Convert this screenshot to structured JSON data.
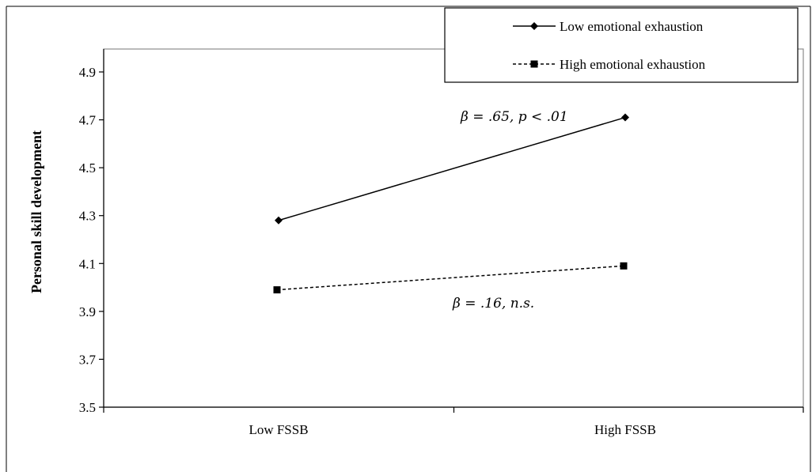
{
  "chart_data": {
    "type": "line",
    "title": "",
    "xlabel": "",
    "ylabel": "Personal skill development",
    "categories": [
      "Low FSSB",
      "High FSSB"
    ],
    "ylim": [
      3.5,
      4.9
    ],
    "yticks": [
      "3.5",
      "3.7",
      "3.9",
      "4.1",
      "4.3",
      "4.5",
      "4.7",
      "4.9"
    ],
    "grid": false,
    "legend_position": "top-right",
    "series": [
      {
        "name": "Low emotional exhaustion",
        "values": [
          4.28,
          4.71
        ],
        "line_style": "solid",
        "marker": "diamond",
        "color": "#000000"
      },
      {
        "name": "High emotional exhaustion",
        "values": [
          3.99,
          4.09
        ],
        "line_style": "dashed",
        "marker": "square",
        "color": "#000000"
      }
    ],
    "annotations": [
      {
        "text": "β = .65, p < .01",
        "series": 0
      },
      {
        "text": "β = .16, n.s.",
        "series": 1
      }
    ]
  }
}
